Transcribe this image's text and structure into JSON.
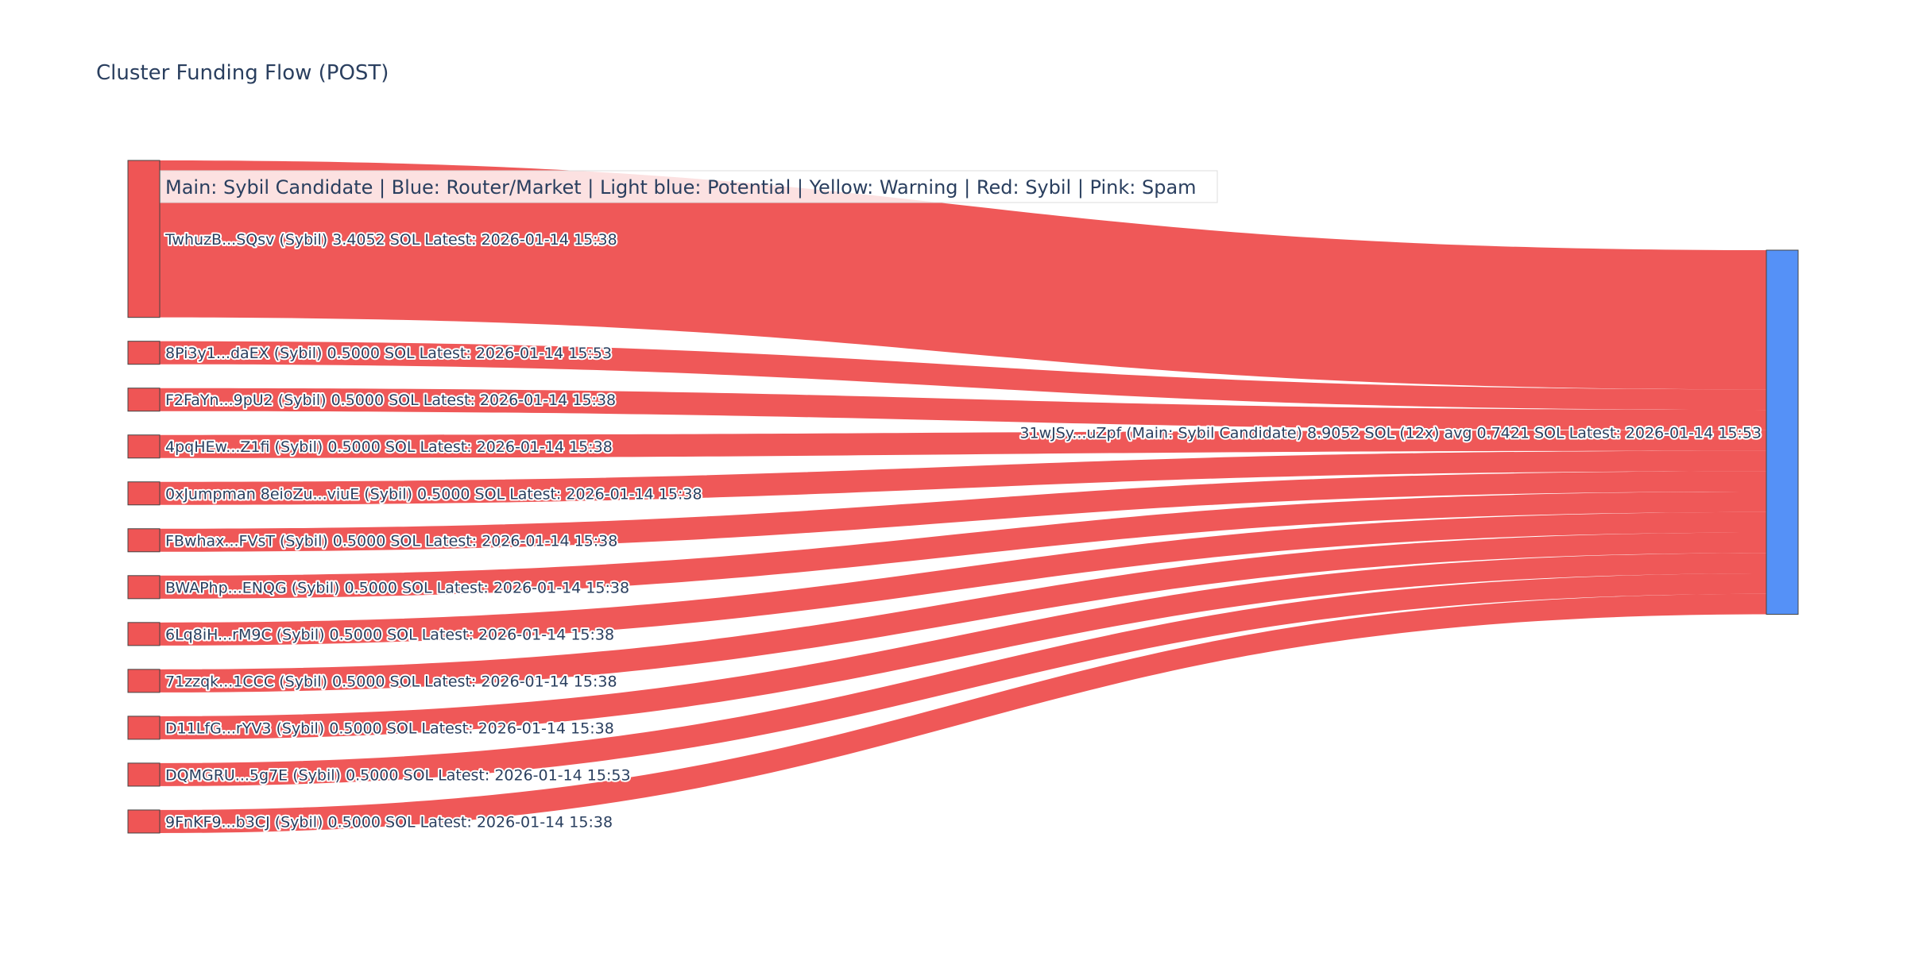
{
  "chart_data": {
    "type": "sankey",
    "title": "Cluster Funding Flow (POST)",
    "annotation": "Main: Sybil Candidate  |  Blue: Router/Market | Light blue: Potential | Yellow: Warning | Red: Sybil | Pink: Spam",
    "colors": {
      "source": "#ef5555",
      "target": "#5591f7",
      "link": "#ef5555",
      "node_border": "#444444"
    },
    "target": {
      "label": "31wJSy...uZpf (Main: Sybil Candidate) 8.9052 SOL (12x) avg 0.7421 SOL Latest: 2026-01-14 15:53",
      "value": 8.9052
    },
    "sources": [
      {
        "label": "TwhuzB...SQsv (Sybil) 3.4052 SOL Latest: 2026-01-14 15:38",
        "value": 3.4052
      },
      {
        "label": "8Pi3y1...daEX (Sybil) 0.5000 SOL Latest: 2026-01-14 15:53",
        "value": 0.5
      },
      {
        "label": "F2FaYn...9pU2 (Sybil) 0.5000 SOL Latest: 2026-01-14 15:38",
        "value": 0.5
      },
      {
        "label": "4pqHEw...Z1fi (Sybil) 0.5000 SOL Latest: 2026-01-14 15:38",
        "value": 0.5
      },
      {
        "label": "0xJumpman 8eioZu...viuE (Sybil) 0.5000 SOL Latest: 2026-01-14 15:38",
        "value": 0.5
      },
      {
        "label": "FBwhax...FVsT (Sybil) 0.5000 SOL Latest: 2026-01-14 15:38",
        "value": 0.5
      },
      {
        "label": "BWAPhp...ENQG (Sybil) 0.5000 SOL Latest: 2026-01-14 15:38",
        "value": 0.5
      },
      {
        "label": "6Lq8iH...rM9C (Sybil) 0.5000 SOL Latest: 2026-01-14 15:38",
        "value": 0.5
      },
      {
        "label": "71zzqk...1CCC (Sybil) 0.5000 SOL Latest: 2026-01-14 15:38",
        "value": 0.5
      },
      {
        "label": "D11LfG...rYV3 (Sybil) 0.5000 SOL Latest: 2026-01-14 15:38",
        "value": 0.5
      },
      {
        "label": "DQMGRU...5g7E (Sybil) 0.5000 SOL Latest: 2026-01-14 15:53",
        "value": 0.5
      },
      {
        "label": "9FnKF9...b3CJ (Sybil) 0.5000 SOL Latest: 2026-01-14 15:38",
        "value": 0.5
      }
    ]
  }
}
